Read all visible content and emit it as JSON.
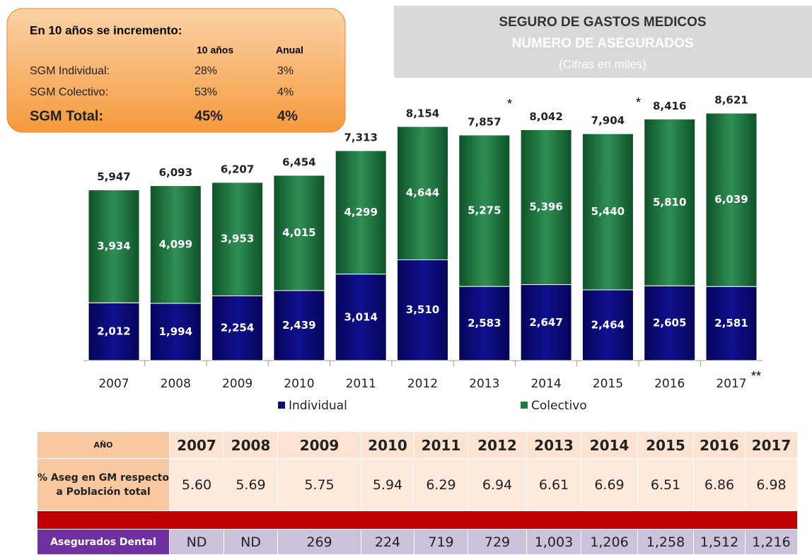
{
  "box": {
    "title": "En 10 años se incremento:",
    "headers": [
      "10 años",
      "Anual"
    ],
    "rows": [
      [
        "SGM Individual:",
        "28%",
        "3%"
      ],
      [
        "SGM Colectivo:",
        "53%",
        "4%"
      ],
      [
        "SGM Total:",
        "45%",
        "4%"
      ]
    ]
  },
  "chart_data": {
    "type": "stacked-bar",
    "title": "SEGURO DE GASTOS MEDICOS",
    "subtitle": "NUMERO DE ASEGURADOS",
    "note": "(Cifras en miles)",
    "categories": [
      "2007",
      "2008",
      "2009",
      "2010",
      "2011",
      "2012",
      "2013",
      "2014",
      "2015",
      "2016",
      "2017"
    ],
    "series": [
      {
        "name": "Individual",
        "color": "#0b0b7a",
        "values": [
          2012,
          1994,
          2254,
          2439,
          3014,
          3510,
          2583,
          2647,
          2464,
          2605,
          2581
        ],
        "value_labels": [
          "2,012",
          "1,994",
          "2,254",
          "2,439",
          "3,014",
          "3,510",
          "2,583",
          "2,647",
          "2,464",
          "2,605",
          "2,581"
        ]
      },
      {
        "name": "Colectivo",
        "color": "#1f7a44",
        "values": [
          3934,
          4099,
          3953,
          4015,
          4299,
          4644,
          5275,
          5396,
          5440,
          5810,
          6039
        ],
        "value_labels": [
          "3,934",
          "4,099",
          "3,953",
          "4,015",
          "4,299",
          "4,644",
          "5,275",
          "5,396",
          "5,440",
          "5,810",
          "6,039"
        ]
      }
    ],
    "totals": {
      "values": [
        5947,
        6093,
        6207,
        6454,
        7313,
        8154,
        7857,
        8042,
        7904,
        8416,
        8621
      ],
      "value_labels": [
        "5,947",
        "6,093",
        "6,207",
        "6,454",
        "7,313",
        "8,154",
        "7,857",
        "8,042",
        "7,904",
        "8,416",
        "8,621"
      ]
    },
    "annotations": [
      "*",
      "*",
      "*",
      "**"
    ]
  },
  "table": {
    "header": [
      "AÑO",
      "2007",
      "2008",
      "2009",
      "2010",
      "2011",
      "2012",
      "2013",
      "2014",
      "2015",
      "2016",
      "2017"
    ],
    "rows": [
      [
        "% Aseg en GM respecto a Población total",
        "5.60",
        "5.69",
        "5.75",
        "5.94",
        "6.29",
        "6.94",
        "6.61",
        "6.69",
        "6.51",
        "6.86",
        "6.98"
      ],
      [
        "Asegurados Dental",
        "ND",
        "ND",
        "269",
        "224",
        "719",
        "729",
        "1,003",
        "1,206",
        "1,258",
        "1,512",
        "1,216"
      ]
    ]
  }
}
